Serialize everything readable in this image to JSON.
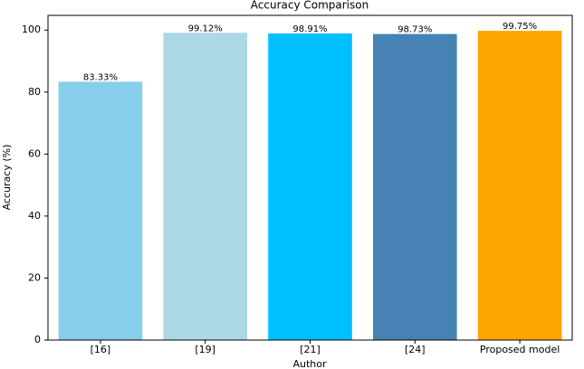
{
  "chart_data": {
    "type": "bar",
    "title": "Accuracy Comparison",
    "x_label": "Author",
    "y_label": "Accuracy (%)",
    "categories": [
      "[16]",
      "[19]",
      "[21]",
      "[24]",
      "Proposed model"
    ],
    "values": [
      83.33,
      99.12,
      98.91,
      98.73,
      99.75
    ],
    "value_labels": [
      "83.33%",
      "99.12%",
      "98.91%",
      "98.73%",
      "99.75%"
    ],
    "colors": [
      "#87ceeb",
      "#add8e6",
      "#00bfff",
      "#4682b4",
      "#ffa500"
    ],
    "ylim": [
      0,
      104.74
    ],
    "yticks": [
      0,
      20,
      40,
      60,
      80,
      100
    ]
  }
}
